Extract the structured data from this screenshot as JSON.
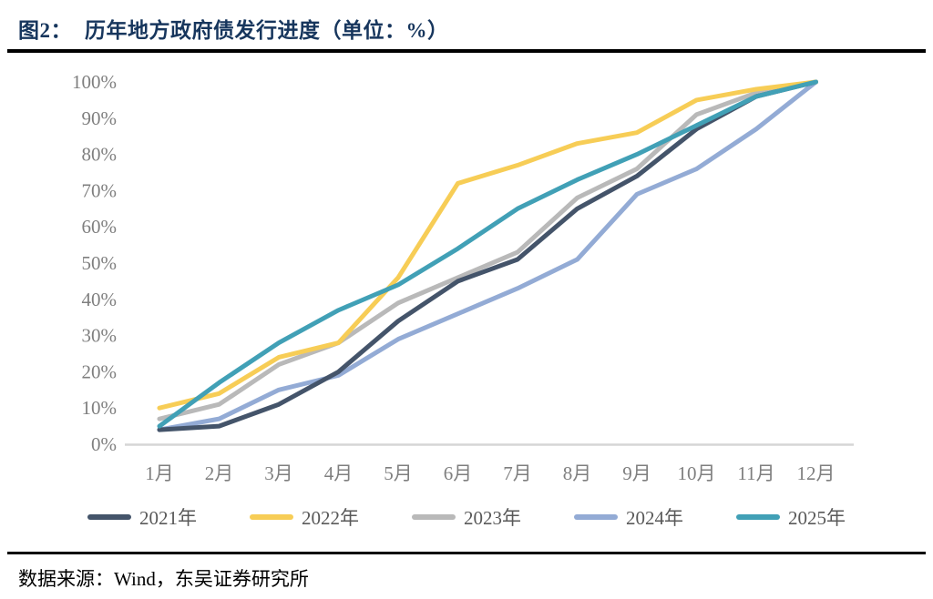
{
  "header": {
    "figure_label": "图2：",
    "title": "历年地方政府债发行进度（单位：%）",
    "title_color": "#17365d"
  },
  "footer": {
    "source_label": "数据来源：",
    "source_text": "Wind，东吴证券研究所"
  },
  "chart_data": {
    "type": "line",
    "title": "历年地方政府债发行进度",
    "unit": "%",
    "xlabel": "",
    "ylabel": "",
    "ylim": [
      0,
      100
    ],
    "grid": false,
    "legend_position": "bottom",
    "axis_color": "#d6d6d6",
    "tick_color": "#7f7f7f",
    "categories": [
      "1月",
      "2月",
      "3月",
      "4月",
      "5月",
      "6月",
      "7月",
      "8月",
      "9月",
      "10月",
      "11月",
      "12月"
    ],
    "y_ticks": [
      "100%",
      "90%",
      "80%",
      "70%",
      "60%",
      "50%",
      "40%",
      "30%",
      "20%",
      "10%",
      "0%"
    ],
    "series": [
      {
        "name": "2021年",
        "color": "#44546a",
        "values": [
          4,
          5,
          11,
          20,
          34,
          45,
          51,
          65,
          74,
          87,
          96,
          100
        ]
      },
      {
        "name": "2022年",
        "color": "#f7cd56",
        "values": [
          10,
          14,
          24,
          28,
          46,
          72,
          77,
          83,
          86,
          95,
          98,
          100
        ]
      },
      {
        "name": "2023年",
        "color": "#b9b9b9",
        "values": [
          7,
          11,
          22,
          28,
          39,
          46,
          53,
          68,
          76,
          91,
          97,
          100
        ]
      },
      {
        "name": "2024年",
        "color": "#93abd5",
        "values": [
          4,
          7,
          15,
          19,
          29,
          36,
          43,
          51,
          69,
          76,
          87,
          100
        ]
      },
      {
        "name": "2025年",
        "color": "#41a0b6",
        "values": [
          5,
          17,
          28,
          37,
          44,
          54,
          65,
          73,
          80,
          88,
          96,
          100
        ]
      }
    ]
  }
}
